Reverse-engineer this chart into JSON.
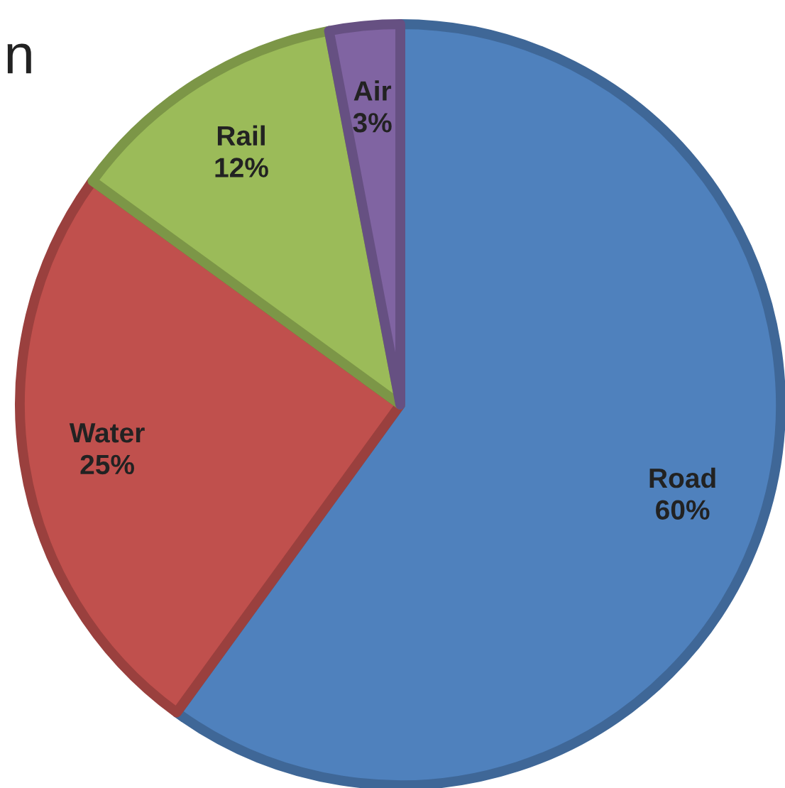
{
  "chart_data": {
    "type": "pie",
    "title": "n",
    "categories": [
      "Road",
      "Water",
      "Rail",
      "Air"
    ],
    "values": [
      60,
      25,
      12,
      3
    ],
    "colors": [
      "#4f81bd",
      "#c0504d",
      "#9bbb59",
      "#8064a2"
    ],
    "value_labels": [
      "60%",
      "25%",
      "12%",
      "3%"
    ],
    "legend": false
  }
}
